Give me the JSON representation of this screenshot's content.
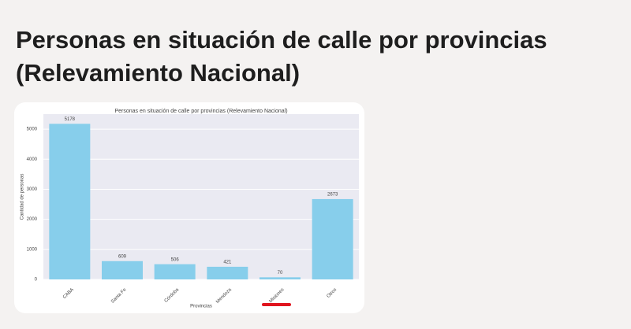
{
  "header": {
    "title_lines": [
      "Personas en situación de calle por provincias",
      "(Relevamiento Nacional)"
    ]
  },
  "chart_data": {
    "type": "bar",
    "title": "Personas en situación de calle por provincias (Relevamiento Nacional)",
    "x_label": "Provincias",
    "y_label": "Cantidad de personas",
    "categories": [
      "CABA",
      "Santa Fe",
      "Córdoba",
      "Mendoza",
      "Misiones",
      "Otros"
    ],
    "values": [
      5178,
      609,
      506,
      421,
      70,
      2673
    ],
    "color": "#87ceeb",
    "ylim": [
      0,
      5500
    ],
    "yticks": [
      0,
      1000,
      2000,
      3000,
      4000,
      5000
    ],
    "grid": true
  }
}
